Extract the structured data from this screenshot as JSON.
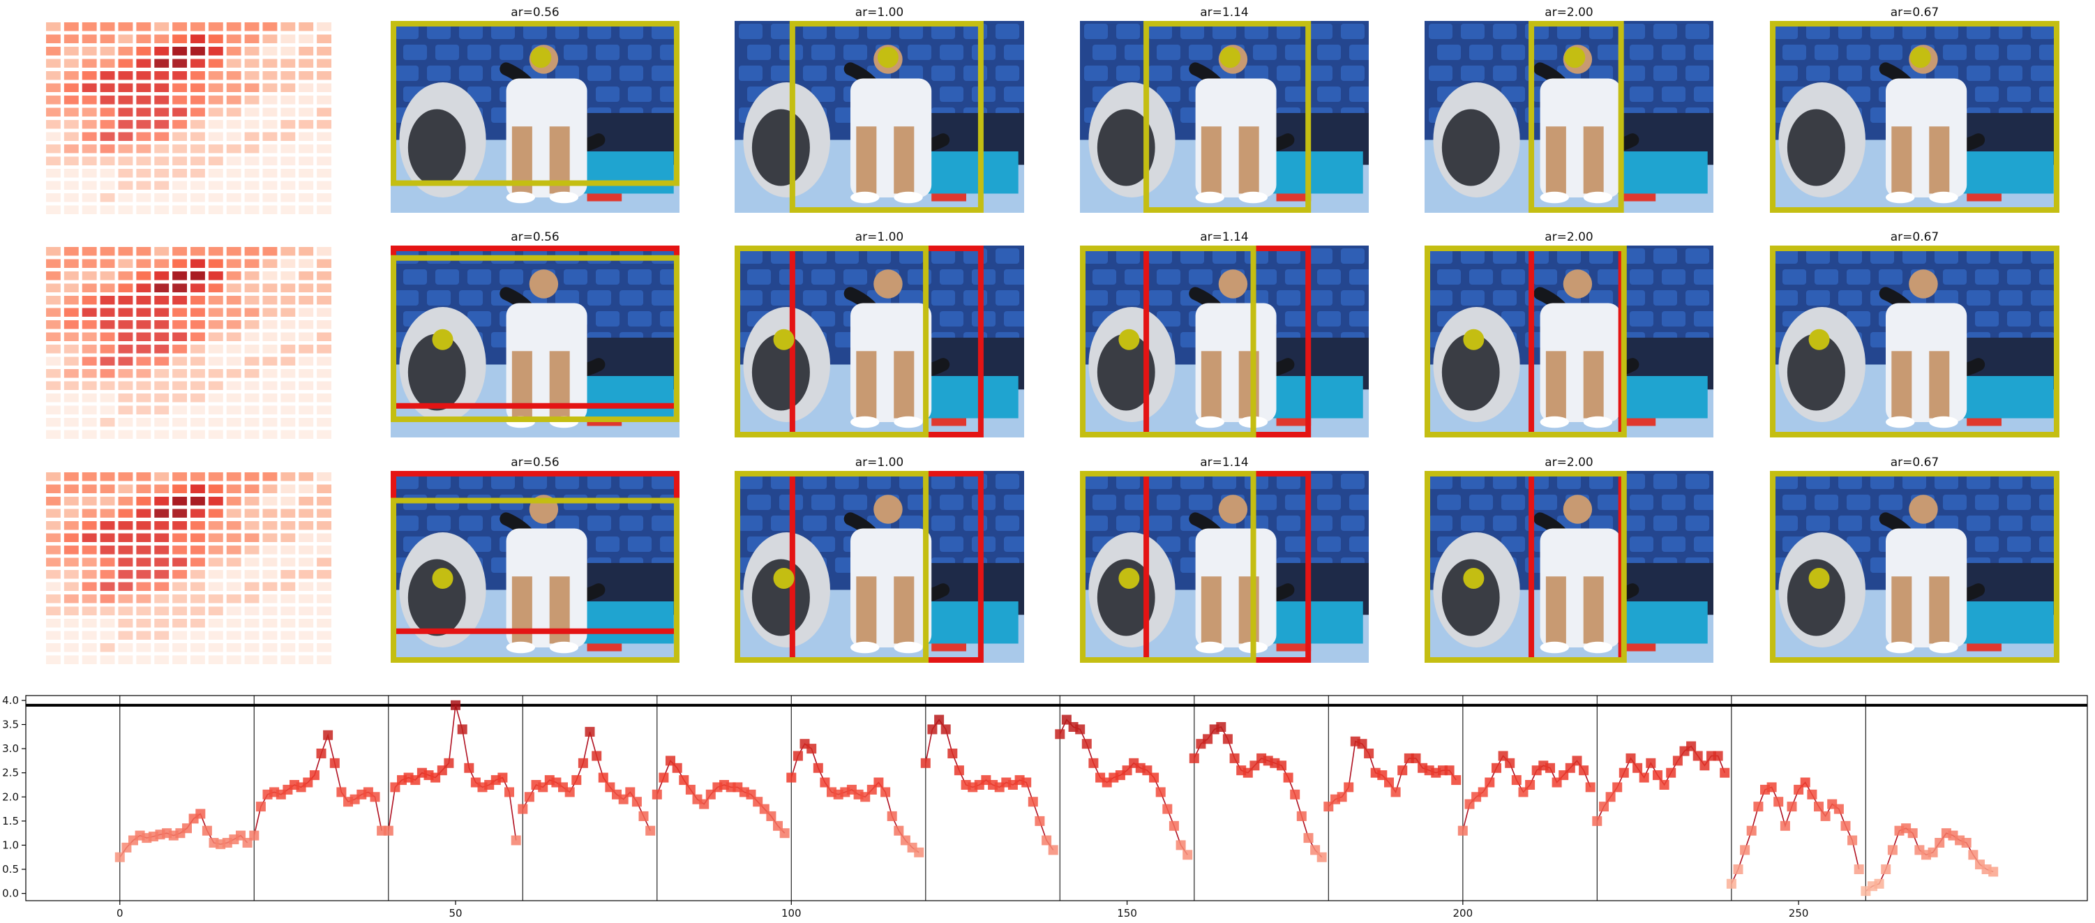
{
  "figure": {
    "panel_titles": [
      "ar=0.56",
      "ar=1.00",
      "ar=1.14",
      "ar=2.00",
      "ar=0.67"
    ],
    "heatmap_colors": [
      "#fee5d9",
      "#fcbba1",
      "#fc9272",
      "#fb6a4a",
      "#de2d26",
      "#a50f15"
    ],
    "photo_colors": {
      "stadium_seat": "#2f5fb5",
      "court": "#a9c9ea",
      "towel": "#eef1f6",
      "yellow_box": "#c4be12",
      "red_box": "#e41414",
      "cooler": "#1fa4d0",
      "skin": "#c89a72"
    }
  },
  "chart_data": {
    "type": "line",
    "xticks": [
      0,
      50,
      100,
      150,
      200,
      250
    ],
    "yticks": [
      "0.0",
      "0.5",
      "1.0",
      "1.5",
      "2.0",
      "2.5",
      "3.0",
      "3.5",
      "4.0"
    ],
    "xlim": [
      -14,
      293
    ],
    "ylim": [
      -0.15,
      4.1
    ],
    "segment_boundaries": [
      0,
      20,
      40,
      60,
      80,
      100,
      120,
      140,
      160,
      180,
      200,
      220,
      240,
      260
    ],
    "hline": 3.9,
    "colors": {
      "low": "#fcbba1",
      "high": "#a50f15",
      "line": "#b01020"
    },
    "segments": [
      [
        0.75,
        0.95,
        1.1,
        1.2,
        1.15,
        1.18,
        1.22,
        1.25,
        1.2,
        1.25,
        1.35,
        1.55,
        1.65,
        1.3,
        1.05,
        1.02,
        1.05,
        1.12,
        1.2,
        1.05
      ],
      [
        1.2,
        1.8,
        2.05,
        2.1,
        2.05,
        2.15,
        2.25,
        2.2,
        2.3,
        2.45,
        2.9,
        3.28,
        2.7,
        2.1,
        1.9,
        1.95,
        2.05,
        2.1,
        2.0,
        1.3
      ],
      [
        1.3,
        2.2,
        2.35,
        2.4,
        2.35,
        2.5,
        2.45,
        2.4,
        2.55,
        2.7,
        3.9,
        3.4,
        2.6,
        2.3,
        2.2,
        2.25,
        2.35,
        2.4,
        2.1,
        1.1
      ],
      [
        1.75,
        2.0,
        2.25,
        2.2,
        2.35,
        2.3,
        2.2,
        2.1,
        2.35,
        2.7,
        3.35,
        2.85,
        2.4,
        2.2,
        2.05,
        1.95,
        2.1,
        1.9,
        1.6,
        1.3
      ],
      [
        2.05,
        2.4,
        2.75,
        2.6,
        2.35,
        2.15,
        1.95,
        1.85,
        2.05,
        2.2,
        2.25,
        2.2,
        2.2,
        2.1,
        2.05,
        1.9,
        1.75,
        1.6,
        1.4,
        1.25
      ],
      [
        2.4,
        2.85,
        3.1,
        3.0,
        2.6,
        2.3,
        2.1,
        2.05,
        2.1,
        2.15,
        2.05,
        2.0,
        2.15,
        2.3,
        2.1,
        1.6,
        1.3,
        1.1,
        0.95,
        0.85
      ],
      [
        2.7,
        3.4,
        3.6,
        3.4,
        2.9,
        2.55,
        2.25,
        2.2,
        2.25,
        2.35,
        2.25,
        2.2,
        2.3,
        2.25,
        2.35,
        2.3,
        1.9,
        1.5,
        1.1,
        0.9
      ],
      [
        3.3,
        3.6,
        3.45,
        3.4,
        3.1,
        2.7,
        2.4,
        2.3,
        2.4,
        2.45,
        2.55,
        2.7,
        2.6,
        2.55,
        2.4,
        2.1,
        1.75,
        1.4,
        1.0,
        0.8
      ],
      [
        2.8,
        3.1,
        3.2,
        3.4,
        3.45,
        3.2,
        2.8,
        2.55,
        2.5,
        2.65,
        2.8,
        2.75,
        2.7,
        2.65,
        2.4,
        2.05,
        1.6,
        1.15,
        0.9,
        0.75
      ],
      [
        1.8,
        1.95,
        2.0,
        2.2,
        3.15,
        3.1,
        2.9,
        2.5,
        2.45,
        2.3,
        2.1,
        2.55,
        2.8,
        2.8,
        2.6,
        2.55,
        2.5,
        2.55,
        2.55,
        2.35
      ],
      [
        1.3,
        1.85,
        2.0,
        2.1,
        2.3,
        2.6,
        2.85,
        2.7,
        2.35,
        2.1,
        2.25,
        2.55,
        2.65,
        2.6,
        2.3,
        2.45,
        2.6,
        2.75,
        2.55,
        2.2
      ],
      [
        1.5,
        1.8,
        2.0,
        2.2,
        2.5,
        2.8,
        2.6,
        2.4,
        2.7,
        2.45,
        2.25,
        2.5,
        2.75,
        2.95,
        3.05,
        2.85,
        2.65,
        2.85,
        2.85,
        2.5
      ],
      [
        0.2,
        0.5,
        0.9,
        1.3,
        1.8,
        2.15,
        2.2,
        1.9,
        1.4,
        1.8,
        2.15,
        2.3,
        2.05,
        1.8,
        1.6,
        1.85,
        1.75,
        1.4,
        1.1,
        0.5
      ],
      [
        0.05,
        0.15,
        0.2,
        0.5,
        0.9,
        1.3,
        1.35,
        1.25,
        0.9,
        0.8,
        0.85,
        1.05,
        1.25,
        1.2,
        1.1,
        1.05,
        0.8,
        0.6,
        0.5,
        0.45
      ]
    ]
  }
}
